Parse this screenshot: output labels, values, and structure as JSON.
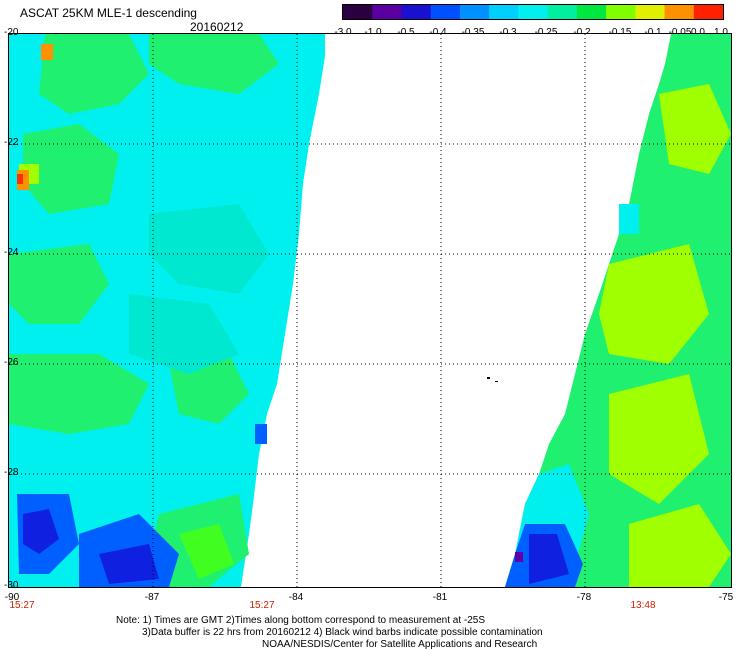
{
  "header": {
    "title": "ASCAT 25KM MLE-1 descending",
    "date": "20160212"
  },
  "colorbar": {
    "labels": [
      "-3.0",
      "-1.0",
      "-0.5",
      "-0.4",
      "-0.35",
      "-0.3",
      "-0.25",
      "-0.2",
      "-0.15",
      "-0.1",
      "-0.05",
      "0.0",
      "1.0"
    ],
    "colors": [
      "#2a0040",
      "#5a00a0",
      "#1a10d0",
      "#0050ff",
      "#0090ff",
      "#00d0ff",
      "#00f0f0",
      "#00f0a0",
      "#00e840",
      "#80ff00",
      "#e0f000",
      "#ff9000",
      "#ff2000"
    ]
  },
  "map": {
    "lat_labels": [
      "-20",
      "-22",
      "-24",
      "-26",
      "-28",
      "-30"
    ],
    "lon_labels": [
      "-90",
      "-87",
      "-84",
      "-81",
      "-78",
      "-75"
    ],
    "pass_times": [
      "15:27",
      "15:27",
      "13:48"
    ],
    "swath_colors": {
      "cyan": "#00f0f0",
      "aqua": "#00e8d0",
      "green": "#20f070",
      "bright_green": "#40ff20",
      "lime": "#a0ff00",
      "blue": "#0060ff",
      "deep_blue": "#1020e0",
      "orange": "#ff9000",
      "red": "#ff3000",
      "purple": "#6000a0"
    }
  },
  "notes": {
    "line1": "Note: 1) Times are GMT 2)Times along bottom correspond to measurement at -25S",
    "line2": "3)Data buffer is 22 hrs from 20160212 4) Black wind barbs indicate possible contamination",
    "line3": "NOAA/NESDIS/Center for Satellite Applications and Research"
  }
}
